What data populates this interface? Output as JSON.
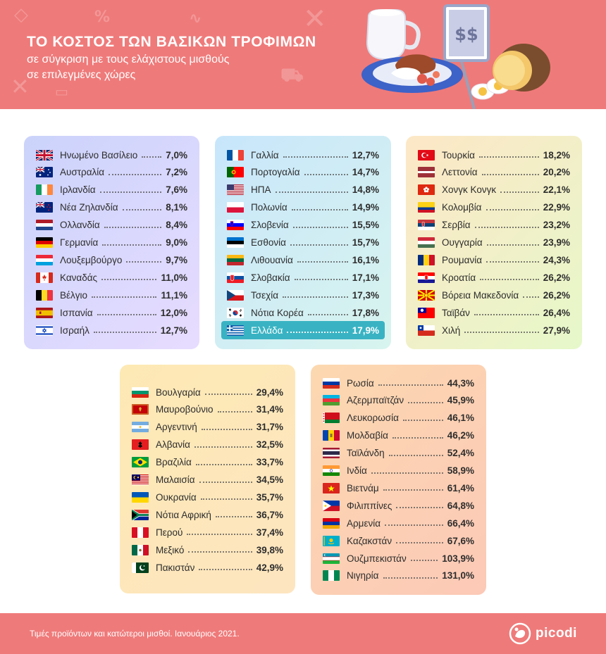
{
  "header": {
    "title": "ΤΟ ΚΟΣΤΟΣ ΤΩΝ ΒΑΣΙΚΩΝ ΤΡΟΦΙΜΩΝ",
    "subtitle_line1": "σε σύγκριση με τους ελάχιστους μισθούς",
    "subtitle_line2": "σε επιλεγμένες χώρες",
    "sign_text": "$$"
  },
  "colors": {
    "header_bg": "#ef7a7a",
    "highlight": "#39b3c3",
    "panel_1": [
      "#cbd3fb",
      "#e7dcff"
    ],
    "panel_2": [
      "#c8e6fb",
      "#d8f4ee"
    ],
    "panel_3": [
      "#fde7c6",
      "#e6f8c9"
    ],
    "panel_4": [
      "#fde9b4",
      "#fde5c0"
    ],
    "panel_5": [
      "#fcd8b0",
      "#fcc9b7"
    ]
  },
  "chart_data": {
    "type": "table",
    "highlighted": "Ελλάδα",
    "groups": [
      {
        "rows": [
          {
            "country": "Ηνωμένο Βασίλειο",
            "value": "7,0%",
            "flag": "gb"
          },
          {
            "country": "Αυστραλία",
            "value": "7,2%",
            "flag": "au"
          },
          {
            "country": "Ιρλανδία",
            "value": "7,6%",
            "flag": "ie"
          },
          {
            "country": "Νέα Ζηλανδία",
            "value": "8,1%",
            "flag": "nz"
          },
          {
            "country": "Ολλανδία",
            "value": "8,4%",
            "flag": "nl"
          },
          {
            "country": "Γερμανία",
            "value": "9,0%",
            "flag": "de"
          },
          {
            "country": "Λουξεμβούργο",
            "value": "9,7%",
            "flag": "lu"
          },
          {
            "country": "Καναδάς",
            "value": "11,0%",
            "flag": "ca"
          },
          {
            "country": "Βέλγιο",
            "value": "11,1%",
            "flag": "be"
          },
          {
            "country": "Ισπανία",
            "value": "12,0%",
            "flag": "es"
          },
          {
            "country": "Ισραήλ",
            "value": "12,7%",
            "flag": "il"
          }
        ]
      },
      {
        "rows": [
          {
            "country": "Γαλλία",
            "value": "12,7%",
            "flag": "fr"
          },
          {
            "country": "Πορτογαλία",
            "value": "14,7%",
            "flag": "pt"
          },
          {
            "country": "ΗΠΑ",
            "value": "14,8%",
            "flag": "us"
          },
          {
            "country": "Πολωνία",
            "value": "14,9%",
            "flag": "pl"
          },
          {
            "country": "Σλοβενία",
            "value": "15,5%",
            "flag": "si"
          },
          {
            "country": "Εσθονία",
            "value": "15,7%",
            "flag": "ee"
          },
          {
            "country": "Λιθουανία",
            "value": "16,1%",
            "flag": "lt"
          },
          {
            "country": "Σλοβακία",
            "value": "17,1%",
            "flag": "sk"
          },
          {
            "country": "Τσεχία",
            "value": "17,3%",
            "flag": "cz"
          },
          {
            "country": "Νότια Κορέα",
            "value": "17,8%",
            "flag": "kr"
          },
          {
            "country": "Ελλάδα",
            "value": "17,9%",
            "flag": "gr"
          }
        ]
      },
      {
        "rows": [
          {
            "country": "Τουρκία",
            "value": "18,2%",
            "flag": "tr"
          },
          {
            "country": "Λεττονία",
            "value": "20,2%",
            "flag": "lv"
          },
          {
            "country": "Χονγκ Κονγκ",
            "value": "22,1%",
            "flag": "hk"
          },
          {
            "country": "Κολομβία",
            "value": "22,9%",
            "flag": "co"
          },
          {
            "country": "Σερβία",
            "value": "23,2%",
            "flag": "rs"
          },
          {
            "country": "Ουγγαρία",
            "value": "23,9%",
            "flag": "hu"
          },
          {
            "country": "Ρουμανία",
            "value": "24,3%",
            "flag": "ro"
          },
          {
            "country": "Κροατία",
            "value": "26,2%",
            "flag": "hr"
          },
          {
            "country": "Βόρεια Μακεδονία",
            "value": "26,2%",
            "flag": "mk"
          },
          {
            "country": "Ταϊβάν",
            "value": "26,4%",
            "flag": "tw"
          },
          {
            "country": "Χιλή",
            "value": "27,9%",
            "flag": "cl"
          }
        ]
      },
      {
        "rows": [
          {
            "country": "Βουλγαρία",
            "value": "29,4%",
            "flag": "bg"
          },
          {
            "country": "Μαυροβούνιο",
            "value": "31,4%",
            "flag": "me"
          },
          {
            "country": "Αργεντινή",
            "value": "31,7%",
            "flag": "ar"
          },
          {
            "country": "Αλβανία",
            "value": "32,5%",
            "flag": "al"
          },
          {
            "country": "Βραζιλία",
            "value": "33,7%",
            "flag": "br"
          },
          {
            "country": "Μαλαισία",
            "value": "34,5%",
            "flag": "my"
          },
          {
            "country": "Ουκρανία",
            "value": "35,7%",
            "flag": "ua"
          },
          {
            "country": "Νότια Αφρική",
            "value": "36,7%",
            "flag": "za"
          },
          {
            "country": "Περού",
            "value": "37,4%",
            "flag": "pe"
          },
          {
            "country": "Μεξικό",
            "value": "39,8%",
            "flag": "mx"
          },
          {
            "country": "Πακιστάν",
            "value": "42,9%",
            "flag": "pk"
          }
        ]
      },
      {
        "rows": [
          {
            "country": "Ρωσία",
            "value": "44,3%",
            "flag": "ru"
          },
          {
            "country": "Αζερμπαϊτζάν",
            "value": "45,9%",
            "flag": "az"
          },
          {
            "country": "Λευκορωσία",
            "value": "46,1%",
            "flag": "by"
          },
          {
            "country": "Μολδαβία",
            "value": "46,2%",
            "flag": "md"
          },
          {
            "country": "Ταϊλάνδη",
            "value": "52,4%",
            "flag": "th"
          },
          {
            "country": "Ινδία",
            "value": "58,9%",
            "flag": "in"
          },
          {
            "country": "Βιετνάμ",
            "value": "61,4%",
            "flag": "vn"
          },
          {
            "country": "Φιλιππίνες",
            "value": "64,8%",
            "flag": "ph"
          },
          {
            "country": "Αρμενία",
            "value": "66,4%",
            "flag": "am"
          },
          {
            "country": "Καζακστάν",
            "value": "67,6%",
            "flag": "kz"
          },
          {
            "country": "Ουζμπεκιστάν",
            "value": "103,9%",
            "flag": "uz"
          },
          {
            "country": "Νιγηρία",
            "value": "131,0%",
            "flag": "ng"
          }
        ]
      }
    ]
  },
  "footer": {
    "note": "Τιμές προϊόντων και κατώτεροι μισθοί. Ιανουάριος 2021.",
    "brand": "picodi"
  }
}
